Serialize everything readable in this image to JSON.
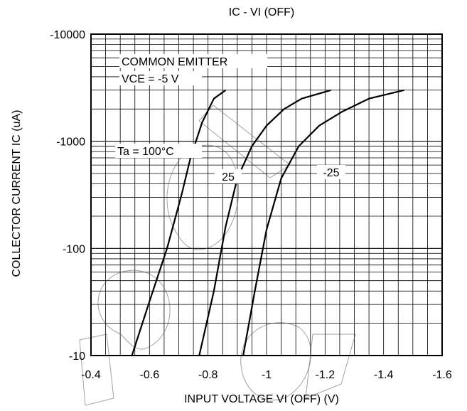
{
  "chart_data": {
    "type": "line",
    "title": "IC - VI (OFF)",
    "xlabel": "INPUT VOLTAGE   VI (OFF) (V)",
    "ylabel": "COLLECTOR CURRENT   IC (uA)",
    "x_scale": "linear",
    "y_scale": "log",
    "xlim": [
      -0.4,
      -1.6
    ],
    "ylim": [
      -10,
      -10000
    ],
    "x_ticks": [
      -0.4,
      -0.6,
      -0.8,
      -1.0,
      -1.2,
      -1.4,
      -1.6
    ],
    "x_tick_labels": [
      "-0.4",
      "-0.6",
      "-0.8",
      "-1",
      "-1.2",
      "-1.4",
      "-1.6"
    ],
    "y_ticks": [
      -10,
      -100,
      -1000,
      -10000
    ],
    "y_tick_labels": [
      "-10",
      "-100",
      "-1000",
      "-10000"
    ],
    "grid": true,
    "annotations": {
      "condition_line1": "COMMON EMITTER",
      "condition_line2": "VCE = -5 V",
      "series_label_100": "Ta = 100°C",
      "series_label_25": "25",
      "series_label_m25": "-25"
    },
    "series": [
      {
        "name": "Ta = 100°C",
        "x": [
          -0.54,
          -0.6,
          -0.66,
          -0.71,
          -0.74,
          -0.78,
          -0.82,
          -0.86
        ],
        "y": [
          -10,
          -32,
          -100,
          -320,
          -700,
          -1500,
          -2500,
          -3000
        ]
      },
      {
        "name": "25",
        "x": [
          -0.77,
          -0.82,
          -0.86,
          -0.9,
          -0.95,
          -1.0,
          -1.06,
          -1.12,
          -1.22
        ],
        "y": [
          -10,
          -40,
          -160,
          -450,
          -900,
          -1400,
          -2000,
          -2500,
          -3000
        ]
      },
      {
        "name": "-25",
        "x": [
          -0.92,
          -0.96,
          -1.0,
          -1.05,
          -1.11,
          -1.18,
          -1.26,
          -1.35,
          -1.47
        ],
        "y": [
          -10,
          -40,
          -150,
          -450,
          -900,
          -1400,
          -1900,
          -2500,
          -3000
        ]
      }
    ]
  }
}
